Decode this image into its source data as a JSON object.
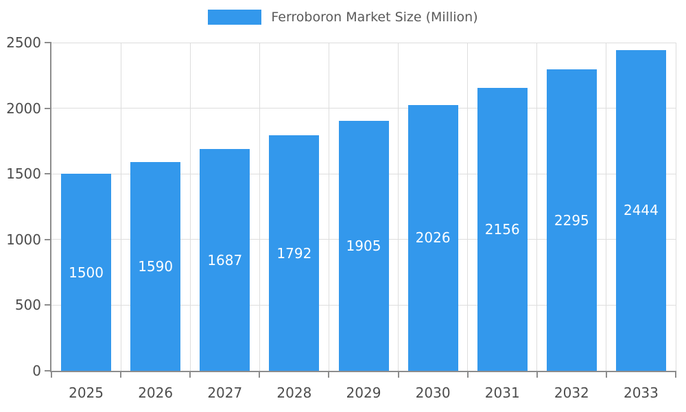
{
  "chart_data": {
    "type": "bar",
    "title": "Ferroboron Market Size (Million)",
    "series_name": "Ferroboron Market Size (Million)",
    "categories": [
      "2025",
      "2026",
      "2027",
      "2028",
      "2029",
      "2030",
      "2031",
      "2032",
      "2033"
    ],
    "values": [
      1500,
      1590,
      1687,
      1792,
      1905,
      2026,
      2156,
      2295,
      2444
    ],
    "xlabel": "",
    "ylabel": "",
    "ylim": [
      0,
      2500
    ],
    "yticks": [
      0,
      500,
      1000,
      1500,
      2000,
      2500
    ],
    "grid": true,
    "legend_position": "top",
    "bar_color": "#3398EC",
    "bar_label_color": "#ffffff",
    "grid_color": "#dddddd",
    "axis_color": "#8c8c8c",
    "tick_label_color": "#4d4d4d"
  }
}
